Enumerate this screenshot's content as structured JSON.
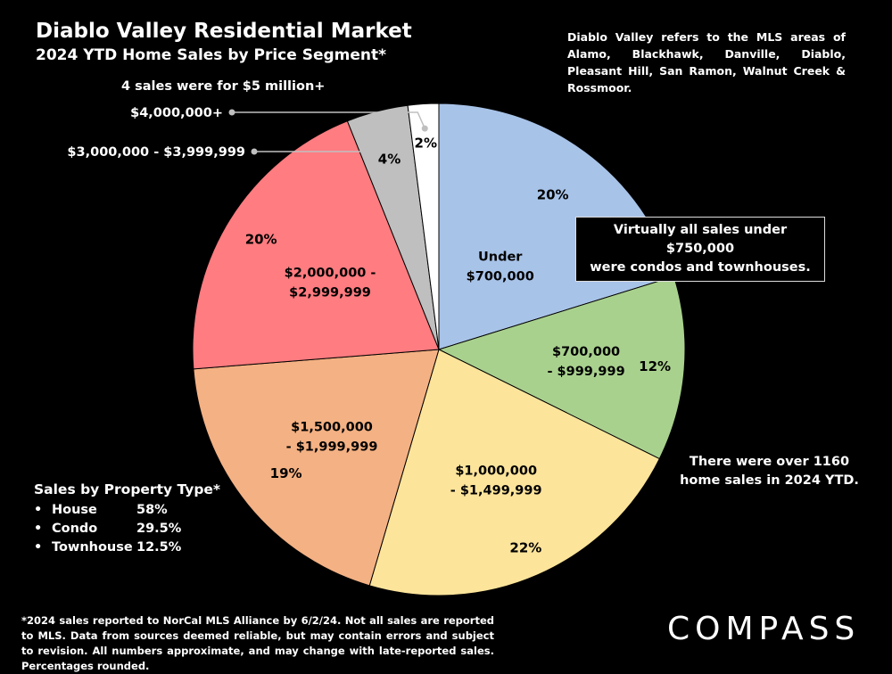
{
  "header": {
    "title": "Diablo Valley Residential Market",
    "subtitle": "2024 YTD Home Sales by Price Segment*"
  },
  "notes": {
    "areas": "Diablo Valley refers to the MLS areas of Alamo, Blackhawk, Danville, Diablo, Pleasant Hill, San Ramon, Walnut Creek & Rossmoor.",
    "five_million": "4 sales were for $5 million+",
    "condos_line1": "Virtually all sales under $750,000",
    "condos_line2": "were condos and townhouses.",
    "total_line1": "There were over 1160",
    "total_line2": "home sales in 2024 YTD.",
    "footnote": "*2024 sales reported to NorCal MLS Alliance by 6/2/24. Not all sales are reported to MLS. Data from sources deemed reliable, but may contain errors and subject to revision. All numbers approximate, and may change with late-reported sales. Percentages rounded."
  },
  "property_type": {
    "title": "Sales by Property Type*",
    "items": [
      {
        "name": "House",
        "value": "58%"
      },
      {
        "name": "Condo",
        "value": "29.5%"
      },
      {
        "name": "Townhouse",
        "value": "12.5%"
      }
    ]
  },
  "logo": "COMPASS",
  "chart_data": {
    "type": "pie",
    "slices": [
      {
        "label_lines": [
          "Under",
          "$700,000"
        ],
        "value": 20,
        "pct": "20%",
        "color": "#A8C3E8"
      },
      {
        "label_lines": [
          "$700,000",
          "- $999,999"
        ],
        "value": 12,
        "pct": "12%",
        "color": "#A9D18E"
      },
      {
        "label_lines": [
          "$1,000,000",
          "- $1,499,999"
        ],
        "value": 22,
        "pct": "22%",
        "color": "#FDE49B"
      },
      {
        "label_lines": [
          "$1,500,000",
          "- $1,999,999"
        ],
        "value": 19,
        "pct": "19%",
        "color": "#F4B183"
      },
      {
        "label_lines": [
          "$2,000,000 -",
          "$2,999,999"
        ],
        "value": 20,
        "pct": "20%",
        "color": "#FF7C80"
      },
      {
        "label": "$3,000,000 - $3,999,999",
        "value": 4,
        "pct": "4%",
        "color": "#BFBFBF"
      },
      {
        "label": "$4,000,000+",
        "value": 2,
        "pct": "2%",
        "color": "#FFFFFF"
      }
    ]
  }
}
